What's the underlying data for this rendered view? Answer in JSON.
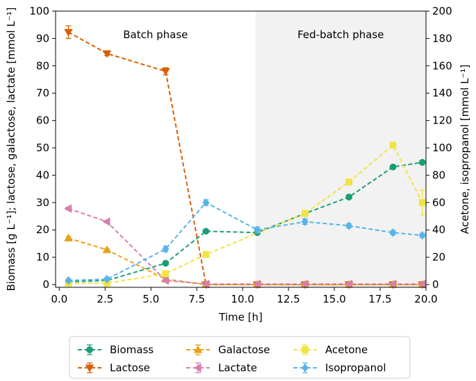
{
  "chart_data": {
    "type": "line",
    "xlabel": "Time [h]",
    "ylabel_left": "Biomass [g L⁻¹]; lactose, galactose, lactate [mmol L⁻¹]",
    "ylabel_right": "Acetone, isopropanol [mmol L⁻¹]",
    "xlim": [
      -0.2,
      20.0
    ],
    "ylim_left": [
      -1,
      100
    ],
    "ylim_right": [
      -2,
      200
    ],
    "xticks": [
      "0.0",
      "2.5",
      "5.0",
      "7.5",
      "10.0",
      "12.5",
      "15.0",
      "17.5",
      "20.0"
    ],
    "yticks_left": [
      "0",
      "10",
      "20",
      "30",
      "40",
      "50",
      "60",
      "70",
      "80",
      "90",
      "100"
    ],
    "yticks_right": [
      "0",
      "20",
      "40",
      "60",
      "80",
      "100",
      "120",
      "140",
      "160",
      "180",
      "200"
    ],
    "phases": [
      {
        "label": "Batch phase",
        "x_start": -0.2,
        "x_end": 10.7,
        "shaded": false
      },
      {
        "label": "Fed-batch phase",
        "x_start": 10.7,
        "x_end": 20.0,
        "shaded": true
      }
    ],
    "series": [
      {
        "name": "Biomass",
        "axis": "left",
        "color": "#1a9e77",
        "marker": "circle",
        "x": [
          0.5,
          2.6,
          5.8,
          8.0,
          10.8,
          13.4,
          15.8,
          18.2,
          19.8
        ],
        "y": [
          1.0,
          1.5,
          7.8,
          19.5,
          19.0,
          26.0,
          32.0,
          43.0,
          44.7
        ],
        "err": [
          0.3,
          0.3,
          0.5,
          0.5,
          0.5,
          0.5,
          0.6,
          0.6,
          0.6
        ]
      },
      {
        "name": "Lactose",
        "axis": "left",
        "color": "#d95f02",
        "marker": "triangle-down",
        "x": [
          0.5,
          2.6,
          5.8,
          8.0,
          10.8,
          13.4,
          15.8,
          18.2,
          19.8
        ],
        "y": [
          92.3,
          84.5,
          78.0,
          0,
          0,
          0,
          0,
          0,
          0
        ],
        "err": [
          2.3,
          0.8,
          1.3,
          0.2,
          0.2,
          0.2,
          0.2,
          0.2,
          0.2
        ]
      },
      {
        "name": "Galactose",
        "axis": "left",
        "color": "#e6a01a",
        "marker": "triangle-up",
        "x": [
          0.5,
          2.6,
          5.8,
          8.0,
          10.8,
          13.4,
          15.8,
          18.2,
          19.8
        ],
        "y": [
          17.0,
          12.7,
          2.0,
          0,
          0,
          0,
          0,
          0,
          0
        ],
        "err": [
          0.6,
          0.4,
          0.3,
          0.2,
          0.2,
          0.2,
          0.2,
          0.2,
          0.2
        ]
      },
      {
        "name": "Lactate",
        "axis": "left",
        "color": "#d67fae",
        "marker": "triangle-left",
        "x": [
          0.5,
          2.6,
          5.8,
          8.0,
          10.8,
          13.4,
          15.8,
          18.2,
          19.8
        ],
        "y": [
          27.8,
          23.0,
          1.5,
          0.2,
          0.2,
          0.2,
          0.2,
          0.2,
          0.2
        ],
        "err": [
          0.5,
          0.4,
          0.3,
          0.2,
          0.2,
          0.2,
          0.2,
          0.2,
          0.2
        ]
      },
      {
        "name": "Acetone",
        "axis": "right",
        "color": "#f0e442",
        "marker": "square",
        "x": [
          0.5,
          2.6,
          5.8,
          8.0,
          13.4,
          15.8,
          18.2,
          19.8
        ],
        "y": [
          1,
          1,
          8,
          22,
          52,
          75,
          102,
          60
        ],
        "err": [
          0.5,
          0.5,
          1,
          1,
          1.5,
          1.5,
          1.5,
          9
        ]
      },
      {
        "name": "Isopropanol",
        "axis": "right",
        "color": "#56b4e9",
        "marker": "diamond",
        "x": [
          0.5,
          2.6,
          5.8,
          8.0,
          10.8,
          13.4,
          15.8,
          18.2,
          19.8
        ],
        "y": [
          3,
          4,
          26,
          60,
          40,
          46,
          43,
          38,
          36
        ],
        "err": [
          1,
          1,
          2,
          2,
          2,
          2,
          1.5,
          1.5,
          1.5
        ]
      }
    ],
    "legend_position": "bottom, outside plot"
  }
}
